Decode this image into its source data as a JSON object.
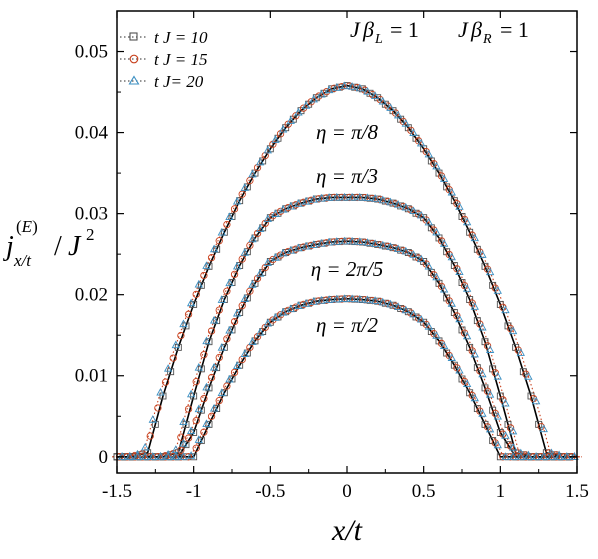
{
  "chart_data": {
    "type": "line",
    "xlabel": "x/t",
    "ylabel": "j_{x/t}^{(E)} / J^2",
    "xlim": [
      -1.5,
      1.5
    ],
    "ylim": [
      -0.002,
      0.055
    ],
    "xticks": [
      -1.5,
      -1,
      -0.5,
      0,
      0.5,
      1,
      1.5
    ],
    "xtick_labels": [
      "-1.5",
      "-1",
      "-0.5",
      "0",
      "0.5",
      "1",
      "1.5"
    ],
    "yticks": [
      0,
      0.01,
      0.02,
      0.03,
      0.04,
      0.05
    ],
    "ytick_labels": [
      "0",
      "0.01",
      "0.02",
      "0.03",
      "0.04",
      "0.05"
    ],
    "parameters_label": {
      "left": "Jβ_L = 1",
      "right": "Jβ_R = 1"
    },
    "legend": {
      "position": "top-left",
      "entries": [
        {
          "label": "t J = 10",
          "marker": "square",
          "color": "#505050"
        },
        {
          "label": "t J = 15",
          "marker": "circle",
          "color": "#c8401c"
        },
        {
          "label": "t J= 20",
          "marker": "triangle",
          "color": "#3b8fc2"
        }
      ]
    },
    "curve_labels": [
      "η = π/8",
      "η = π/3",
      "η = 2π/5",
      "η = π/2"
    ],
    "x": [
      -1.5,
      -1.4,
      -1.3,
      -1.25,
      -1.2,
      -1.1,
      -1.0,
      -0.9,
      -0.8,
      -0.7,
      -0.6,
      -0.5,
      -0.4,
      -0.3,
      -0.2,
      -0.1,
      0,
      0.1,
      0.2,
      0.3,
      0.4,
      0.5,
      0.6,
      0.7,
      0.8,
      0.9,
      1.0,
      1.1,
      1.2,
      1.25,
      1.3,
      1.4,
      1.5
    ],
    "series": [
      {
        "name": "η = π/8",
        "values": [
          0,
          0,
          0.0005,
          0.004,
          0.0075,
          0.0135,
          0.0188,
          0.0235,
          0.0277,
          0.0316,
          0.035,
          0.038,
          0.0406,
          0.0427,
          0.0443,
          0.0454,
          0.0458,
          0.0454,
          0.0443,
          0.0427,
          0.0406,
          0.038,
          0.035,
          0.0316,
          0.0277,
          0.0235,
          0.0188,
          0.0135,
          0.0075,
          0.004,
          0.0005,
          0,
          0
        ]
      },
      {
        "name": "η = π/3",
        "values": [
          0,
          0,
          0,
          0,
          0,
          0.0005,
          0.0075,
          0.0142,
          0.0194,
          0.0236,
          0.027,
          0.0295,
          0.0306,
          0.0313,
          0.0318,
          0.032,
          0.032,
          0.032,
          0.0318,
          0.0313,
          0.0306,
          0.0295,
          0.027,
          0.0236,
          0.0194,
          0.0142,
          0.0075,
          0.0005,
          0,
          0,
          0,
          0,
          0
        ]
      },
      {
        "name": "η = 2π/5",
        "values": [
          0,
          0,
          0,
          0,
          0,
          0,
          0.003,
          0.0085,
          0.0135,
          0.0178,
          0.0214,
          0.0241,
          0.0252,
          0.0258,
          0.0262,
          0.0265,
          0.0266,
          0.0265,
          0.0262,
          0.0258,
          0.0252,
          0.0241,
          0.0214,
          0.0178,
          0.0135,
          0.0085,
          0.003,
          0,
          0,
          0,
          0,
          0,
          0
        ]
      },
      {
        "name": "η = π/2",
        "values": [
          0,
          0,
          0,
          0,
          0,
          0,
          0,
          0.004,
          0.0079,
          0.0113,
          0.0143,
          0.0166,
          0.0179,
          0.0187,
          0.0192,
          0.0194,
          0.0195,
          0.0194,
          0.0192,
          0.0187,
          0.0179,
          0.0166,
          0.0143,
          0.0113,
          0.0079,
          0.004,
          0,
          0,
          0,
          0,
          0,
          0,
          0
        ]
      }
    ]
  }
}
